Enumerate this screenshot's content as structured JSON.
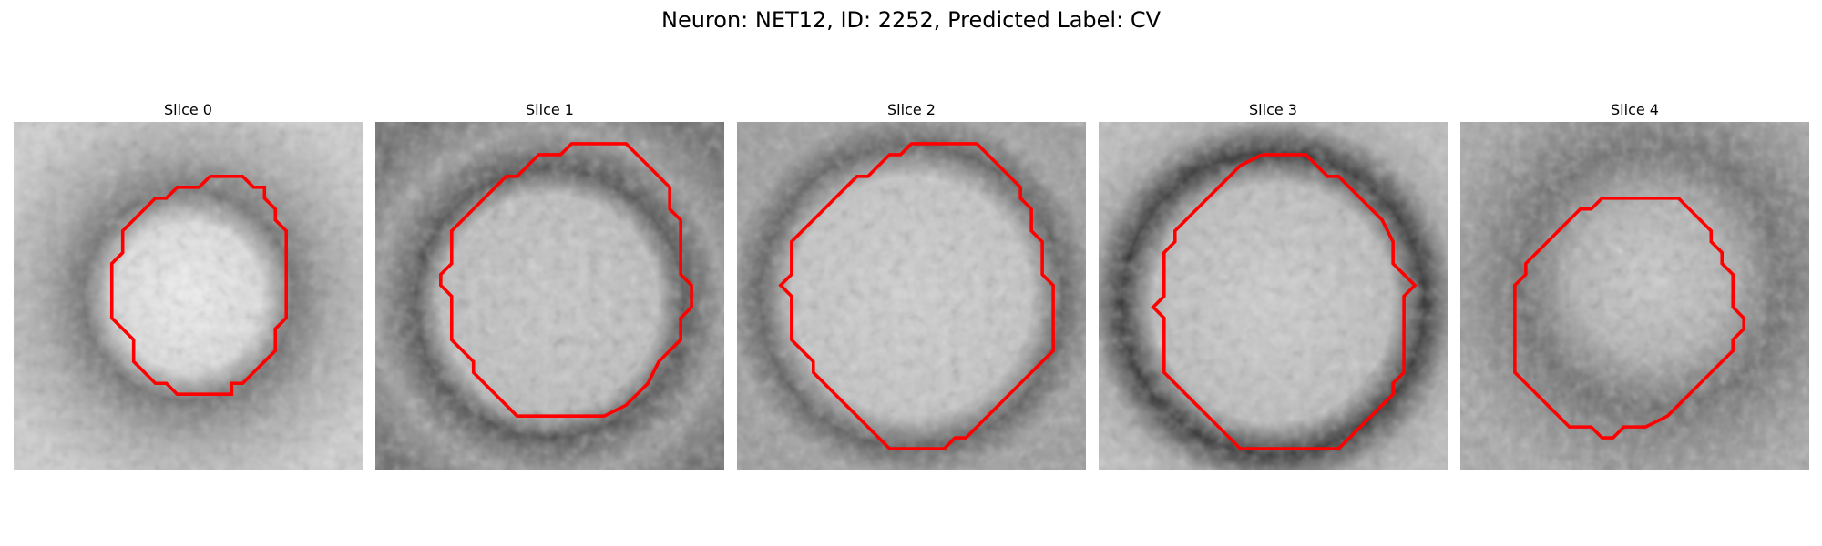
{
  "figure": {
    "title": "Neuron: NET12, ID: 2252, Predicted Label: CV"
  },
  "colors": {
    "contour": "#ff0000",
    "background": "#ffffff"
  },
  "panels": [
    {
      "title": "Slice 0"
    },
    {
      "title": "Slice 1"
    },
    {
      "title": "Slice 2"
    },
    {
      "title": "Slice 3"
    },
    {
      "title": "Slice 4"
    }
  ]
}
